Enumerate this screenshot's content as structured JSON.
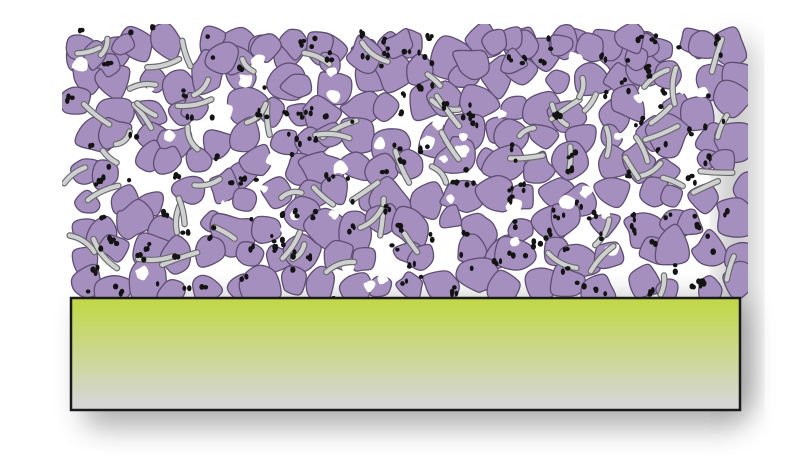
{
  "diagram": {
    "colors": {
      "background": "#ffffff",
      "particle_fill": "#a58fbf",
      "particle_stroke": "#5f4e73",
      "fiber_fill": "#cfd0d2",
      "fiber_stroke": "#6a6a6a",
      "dot_fill": "#141414",
      "substrate_top": "#c2d84a",
      "substrate_bottom": "#d6d6d6",
      "substrate_stroke": "#1a1a1a",
      "shadow": "#555555"
    },
    "layers": [
      {
        "name": "porous-particle-layer",
        "components": [
          "particle",
          "fiber",
          "dot"
        ]
      },
      {
        "name": "substrate"
      }
    ]
  }
}
